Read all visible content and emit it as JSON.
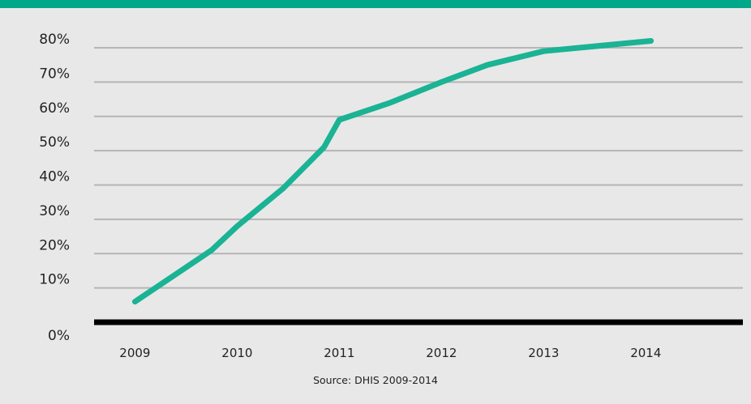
{
  "chart_data": {
    "type": "line",
    "title": "",
    "xlabel": "",
    "ylabel": "",
    "y_ticks": [
      "0%",
      "10%",
      "20%",
      "30%",
      "40%",
      "50%",
      "60%",
      "70%",
      "80%"
    ],
    "x_ticks": [
      "2009",
      "2010",
      "2011",
      "2012",
      "2013",
      "2014"
    ],
    "ylim": [
      0,
      80
    ],
    "xlim": [
      2008.6,
      2014.95
    ],
    "grid": true,
    "series": [
      {
        "x": [
          2009.0,
          2009.75,
          2010.0,
          2010.45,
          2010.85,
          2011.0,
          2011.5,
          2012.0,
          2012.45,
          2013.0,
          2014.05
        ],
        "y": [
          6,
          21,
          28,
          39,
          51,
          59,
          64,
          70,
          75,
          79,
          82
        ]
      }
    ],
    "source": "Source: DHIS 2009-2014"
  },
  "colors": {
    "top_bar": "#00a88a",
    "background": "#e8e8e8",
    "line": "#1ab394",
    "grid": "#b5b5b5",
    "axis": "#000000"
  }
}
